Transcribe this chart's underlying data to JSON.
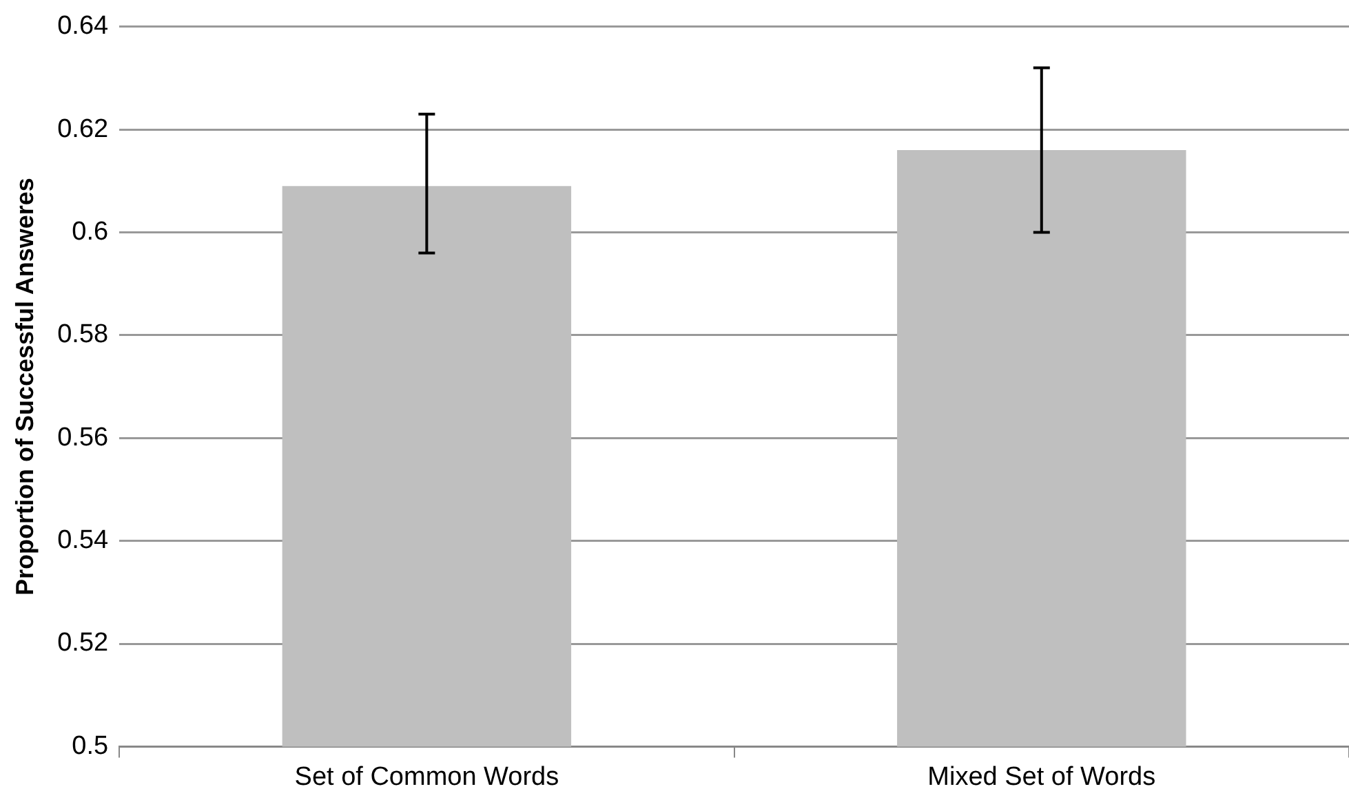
{
  "chart_data": {
    "type": "bar",
    "ylabel": "Proportion of Successful Answeres",
    "categories": [
      "Set of Common Words",
      "Mixed Set of Words"
    ],
    "values": [
      0.609,
      0.616
    ],
    "color": "#bfbfbf",
    "errors": [
      [
        0.596,
        0.623
      ],
      [
        0.6,
        0.632
      ]
    ],
    "ylim": [
      0.5,
      0.64
    ],
    "yticks": [
      0.5,
      0.52,
      0.54,
      0.56,
      0.58,
      0.6,
      0.62,
      0.64
    ],
    "grid": "y",
    "legend": false
  }
}
